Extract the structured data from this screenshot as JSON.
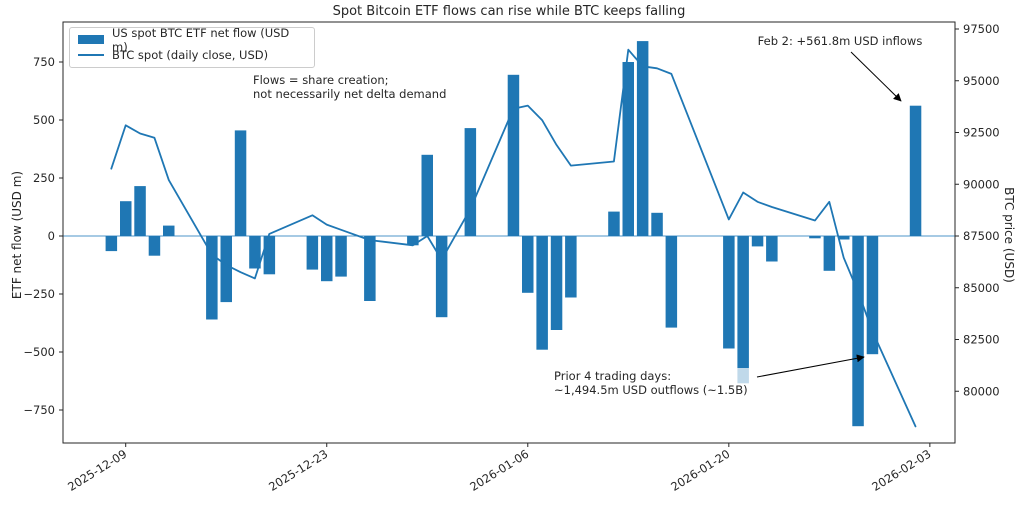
{
  "title": "Spot Bitcoin ETF flows can rise while BTC keeps falling",
  "legend": {
    "bar_label": "US spot BTC ETF net flow (USD m)",
    "line_label": "BTC spot (daily close, USD)"
  },
  "chart_data": {
    "type": "bar+line dual-axis",
    "title": "Spot Bitcoin ETF flows can rise while BTC keeps falling",
    "left_axis": {
      "label": "ETF net flow (USD m)",
      "tick_values": [
        750,
        500,
        250,
        0,
        -250,
        -500,
        -750
      ],
      "tick_labels": [
        "750",
        "500",
        "250",
        "0",
        "−250",
        "−500",
        "−750"
      ],
      "ylim": [
        -892,
        922
      ]
    },
    "right_axis": {
      "label": "BTC price (USD)",
      "tick_values": [
        97500,
        95000,
        92500,
        90000,
        87500,
        85000,
        82500,
        80000
      ],
      "tick_labels": [
        "97500",
        "95000",
        "92500",
        "90000",
        "87500",
        "85000",
        "82500",
        "80000"
      ],
      "ylim": [
        77500,
        97840
      ]
    },
    "x_axis": {
      "tick_dates": [
        "2025-12-09",
        "2025-12-23",
        "2026-01-06",
        "2026-01-20",
        "2026-02-03"
      ],
      "tick_labels": [
        "2025-12-09",
        "2025-12-23",
        "2026-01-06",
        "2026-01-20",
        "2026-02-03"
      ]
    },
    "x": [
      "2025-12-08",
      "2025-12-09",
      "2025-12-10",
      "2025-12-11",
      "2025-12-12",
      "2025-12-15",
      "2025-12-16",
      "2025-12-17",
      "2025-12-18",
      "2025-12-19",
      "2025-12-22",
      "2025-12-23",
      "2025-12-24",
      "2025-12-26",
      "2025-12-29",
      "2025-12-30",
      "2025-12-31",
      "2026-01-02",
      "2026-01-05",
      "2026-01-06",
      "2026-01-07",
      "2026-01-08",
      "2026-01-09",
      "2026-01-12",
      "2026-01-13",
      "2026-01-14",
      "2026-01-15",
      "2026-01-16",
      "2026-01-20",
      "2026-01-21",
      "2026-01-22",
      "2026-01-23",
      "2026-01-26",
      "2026-01-27",
      "2026-01-28",
      "2026-01-29",
      "2026-01-30",
      "2026-02-02"
    ],
    "series": [
      {
        "name": "US spot BTC ETF net flow (USD m)",
        "type": "bar",
        "axis": "left",
        "color": "#1f77b4",
        "values": [
          -65,
          150,
          215,
          -85,
          45,
          -360,
          -285,
          455,
          -140,
          -165,
          -145,
          -195,
          -175,
          -280,
          -40,
          350,
          -350,
          465,
          695,
          -245,
          -490,
          -405,
          -265,
          105,
          750,
          840,
          100,
          -395,
          -485,
          -635,
          -45,
          -110,
          -10,
          -150,
          -15,
          -820,
          -509.5,
          561.8
        ]
      },
      {
        "name": "BTC spot (daily close, USD)",
        "type": "line",
        "axis": "right",
        "color": "#1f77b4",
        "values": [
          90750,
          92850,
          92450,
          92250,
          90200,
          86600,
          86100,
          85750,
          85450,
          87600,
          88500,
          88050,
          87800,
          87300,
          87050,
          87500,
          86350,
          88800,
          93650,
          93800,
          93100,
          91900,
          90900,
          91100,
          96500,
          95700,
          95600,
          95330,
          88300,
          89600,
          89150,
          88900,
          88250,
          89150,
          86450,
          84800,
          82900,
          78300
        ]
      }
    ],
    "annotations": {
      "flows_note_line1": "Flows = share creation;",
      "flows_note_line2": "not necessarily net delta demand",
      "feb2_note": "Feb 2: +561.8m USD inflows",
      "prior4_line1": "Prior 4 trading days:",
      "prior4_line2": "~1,494.5m USD outflows (~1.5B)"
    },
    "zero_line_value": 0,
    "grid": false,
    "legend_position": "upper left",
    "colors": {
      "bar": "#1f77b4",
      "line": "#1f77b4",
      "zero_line": "#4c96c8",
      "frame": "#262626"
    }
  }
}
